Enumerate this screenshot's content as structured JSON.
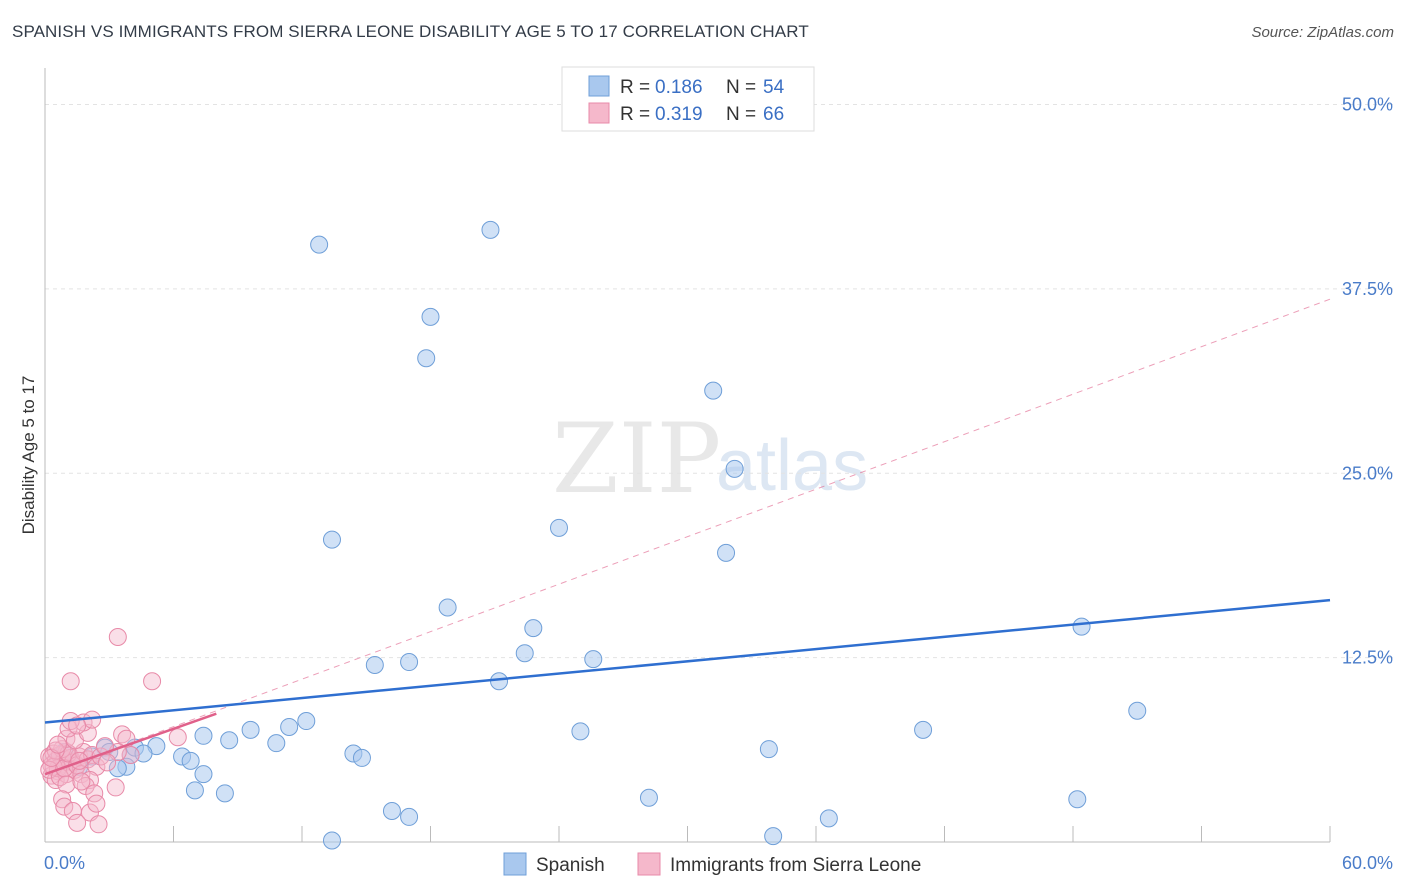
{
  "title": "SPANISH VS IMMIGRANTS FROM SIERRA LEONE DISABILITY AGE 5 TO 17 CORRELATION CHART",
  "source": "Source: ZipAtlas.com",
  "watermark": {
    "zip": "ZIP",
    "atlas": "atlas"
  },
  "colors": {
    "blue_fill": "#a9c8ee",
    "blue_stroke": "#6f9fd8",
    "blue_line": "#2f6fd0",
    "pink_fill": "#f5b8cb",
    "pink_stroke": "#e88aa8",
    "pink_line": "#e0608a",
    "grid": "#e3e3e3",
    "axis": "#bbbbbb",
    "tick_text": "#4a7cc9"
  },
  "legend": {
    "r_label": "R =",
    "n_label": "N =",
    "spanish_r": "0.186",
    "spanish_n": "54",
    "sierra_r": "0.319",
    "sierra_n": "66"
  },
  "chart_data": {
    "type": "scatter",
    "title": "SPANISH VS IMMIGRANTS FROM SIERRA LEONE DISABILITY AGE 5 TO 17 CORRELATION CHART",
    "xlabel": "",
    "ylabel": "Disability Age 5 to 17",
    "xlim": [
      0,
      60
    ],
    "ylim": [
      0,
      52
    ],
    "x_tick_labels": [
      "0.0%",
      "60.0%"
    ],
    "y_ticks": [
      12.5,
      25.0,
      37.5,
      50.0
    ],
    "y_tick_labels": [
      "12.5%",
      "25.0%",
      "37.5%",
      "50.0%"
    ],
    "grid": true,
    "series": [
      {
        "name": "Spanish",
        "color": "#a9c8ee",
        "trend": {
          "x": [
            0,
            60
          ],
          "y": [
            8.1,
            16.4
          ],
          "style": "solid"
        },
        "points": [
          [
            12.8,
            40.5
          ],
          [
            20.8,
            41.5
          ],
          [
            18.0,
            35.6
          ],
          [
            17.8,
            32.8
          ],
          [
            31.2,
            30.6
          ],
          [
            32.2,
            25.3
          ],
          [
            13.4,
            20.5
          ],
          [
            24.0,
            21.3
          ],
          [
            31.8,
            19.6
          ],
          [
            18.8,
            15.9
          ],
          [
            22.8,
            14.5
          ],
          [
            22.4,
            12.8
          ],
          [
            25.6,
            12.4
          ],
          [
            15.4,
            12.0
          ],
          [
            17.0,
            12.2
          ],
          [
            21.2,
            10.9
          ],
          [
            48.4,
            14.6
          ],
          [
            51.0,
            8.9
          ],
          [
            41.0,
            7.6
          ],
          [
            25.0,
            7.5
          ],
          [
            33.8,
            6.3
          ],
          [
            12.2,
            8.2
          ],
          [
            11.4,
            7.8
          ],
          [
            9.6,
            7.6
          ],
          [
            10.8,
            6.7
          ],
          [
            7.4,
            7.2
          ],
          [
            8.6,
            6.9
          ],
          [
            6.4,
            5.8
          ],
          [
            5.2,
            6.5
          ],
          [
            4.0,
            5.9
          ],
          [
            4.2,
            6.4
          ],
          [
            3.8,
            5.1
          ],
          [
            2.8,
            6.4
          ],
          [
            2.2,
            5.8
          ],
          [
            1.6,
            5.1
          ],
          [
            0.6,
            5.6
          ],
          [
            1.2,
            5.7
          ],
          [
            0.9,
            6.1
          ],
          [
            3.0,
            6.1
          ],
          [
            4.6,
            6.0
          ],
          [
            3.4,
            5.0
          ],
          [
            6.8,
            5.5
          ],
          [
            7.4,
            4.6
          ],
          [
            7.0,
            3.5
          ],
          [
            8.4,
            3.3
          ],
          [
            14.4,
            6.0
          ],
          [
            14.8,
            5.7
          ],
          [
            28.2,
            3.0
          ],
          [
            17.0,
            1.7
          ],
          [
            16.2,
            2.1
          ],
          [
            13.4,
            0.1
          ],
          [
            36.6,
            1.6
          ],
          [
            48.2,
            2.9
          ],
          [
            34.0,
            0.4
          ]
        ]
      },
      {
        "name": "Immigrants from Sierra Leone",
        "color": "#f5b8cb",
        "trend": {
          "x": [
            0,
            8
          ],
          "y": [
            4.6,
            8.7
          ],
          "style": "solid"
        },
        "trend_extended": {
          "x": [
            0,
            60
          ],
          "y": [
            4.6,
            36.8
          ],
          "style": "dashed"
        },
        "points": [
          [
            0.2,
            5.8
          ],
          [
            0.3,
            5.2
          ],
          [
            0.4,
            6.0
          ],
          [
            0.5,
            5.5
          ],
          [
            0.6,
            4.8
          ],
          [
            0.7,
            5.9
          ],
          [
            0.8,
            5.3
          ],
          [
            0.9,
            5.6
          ],
          [
            1.0,
            6.1
          ],
          [
            1.1,
            5.0
          ],
          [
            1.2,
            5.7
          ],
          [
            0.3,
            4.5
          ],
          [
            0.5,
            4.2
          ],
          [
            0.6,
            5.0
          ],
          [
            0.8,
            6.3
          ],
          [
            1.0,
            4.6
          ],
          [
            1.3,
            5.4
          ],
          [
            1.4,
            4.9
          ],
          [
            1.6,
            5.8
          ],
          [
            0.4,
            5.1
          ],
          [
            0.2,
            4.9
          ],
          [
            0.7,
            4.4
          ],
          [
            0.9,
            5.0
          ],
          [
            1.1,
            6.0
          ],
          [
            1.5,
            5.2
          ],
          [
            1.8,
            6.1
          ],
          [
            2.0,
            5.6
          ],
          [
            2.2,
            5.9
          ],
          [
            1.7,
            4.6
          ],
          [
            2.4,
            5.1
          ],
          [
            2.6,
            5.8
          ],
          [
            2.1,
            4.2
          ],
          [
            1.9,
            3.8
          ],
          [
            2.3,
            3.3
          ],
          [
            1.0,
            3.9
          ],
          [
            0.8,
            2.9
          ],
          [
            0.9,
            2.4
          ],
          [
            1.3,
            2.1
          ],
          [
            2.1,
            2.0
          ],
          [
            1.5,
            1.3
          ],
          [
            2.5,
            1.2
          ],
          [
            2.4,
            2.6
          ],
          [
            1.0,
            7.0
          ],
          [
            1.4,
            6.9
          ],
          [
            2.0,
            7.4
          ],
          [
            1.8,
            8.1
          ],
          [
            1.1,
            7.7
          ],
          [
            1.2,
            8.2
          ],
          [
            2.2,
            8.3
          ],
          [
            3.6,
            7.3
          ],
          [
            1.5,
            7.9
          ],
          [
            6.2,
            7.1
          ],
          [
            3.8,
            7.0
          ],
          [
            4.0,
            5.9
          ],
          [
            3.4,
            6.1
          ],
          [
            2.9,
            5.4
          ],
          [
            3.3,
            3.7
          ],
          [
            1.2,
            10.9
          ],
          [
            5.0,
            10.9
          ],
          [
            3.4,
            13.9
          ],
          [
            1.6,
            5.5
          ],
          [
            0.5,
            6.2
          ],
          [
            0.3,
            5.7
          ],
          [
            2.8,
            6.5
          ],
          [
            0.6,
            6.6
          ],
          [
            1.7,
            4.1
          ]
        ]
      }
    ],
    "legend_position": "top-center"
  },
  "bottom_legend": {
    "spanish": "Spanish",
    "sierra": "Immigrants from Sierra Leone"
  }
}
